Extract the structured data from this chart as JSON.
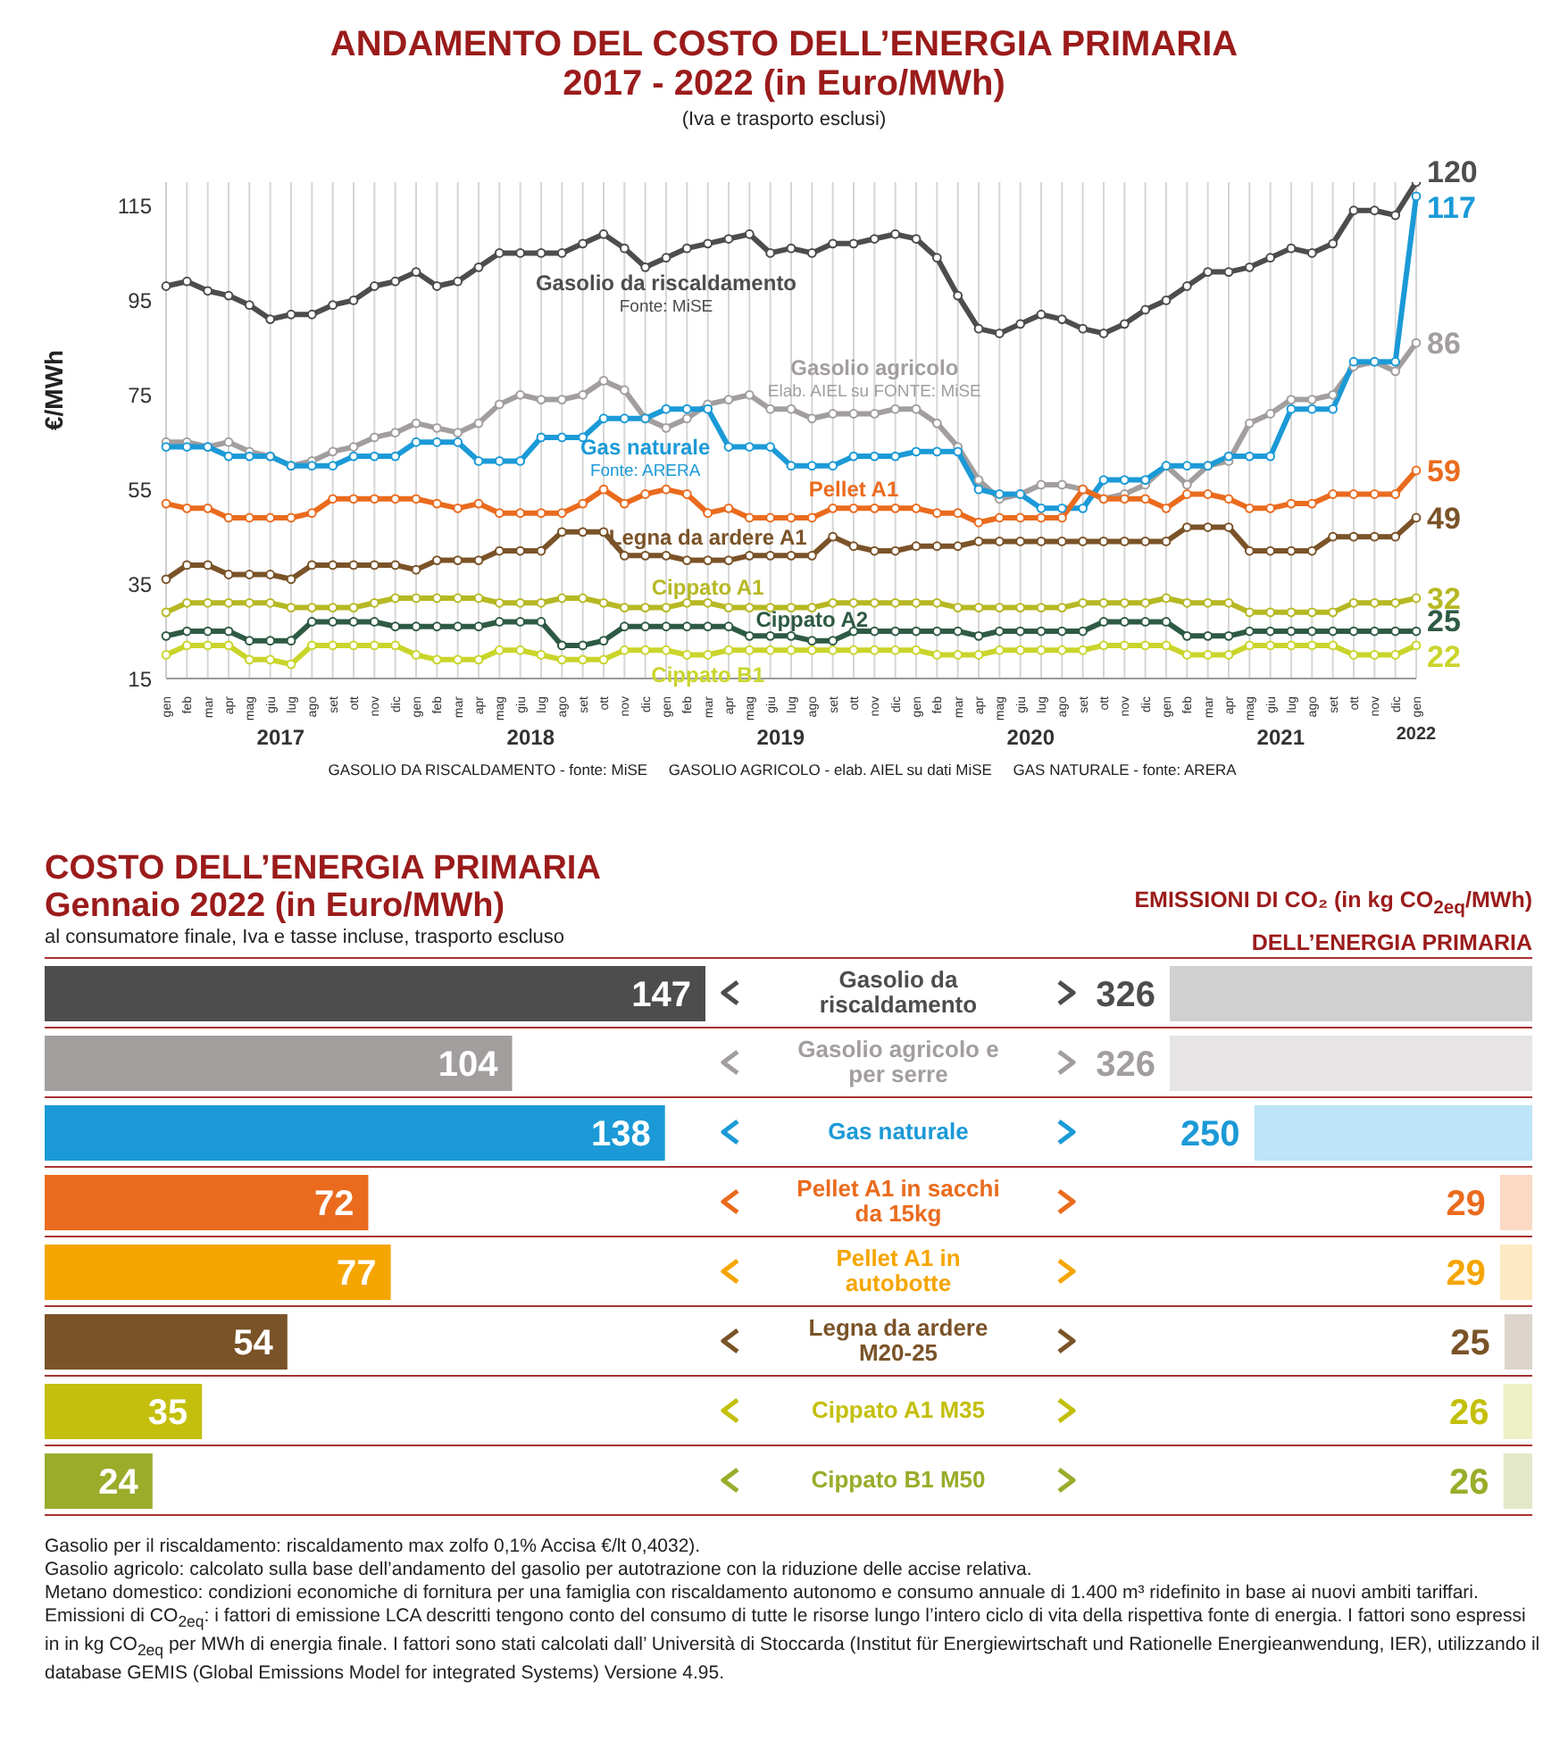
{
  "chart_data": [
    {
      "type": "line",
      "title": "ANDAMENTO DEL COSTO DELL’ENERGIA PRIMARIA\n2017 - 2022 (in Euro/MWh)",
      "subtitle": "(Iva e trasporto esclusi)",
      "ylabel": "€/MWh",
      "categories": [
        "gen",
        "feb",
        "mar",
        "apr",
        "mag",
        "giu",
        "lug",
        "ago",
        "set",
        "ott",
        "nov",
        "dic",
        "gen",
        "feb",
        "mar",
        "apr",
        "mag",
        "giu",
        "lug",
        "ago",
        "set",
        "ott",
        "nov",
        "dic",
        "gen",
        "feb",
        "mar",
        "apr",
        "mag",
        "giu",
        "lug",
        "ago",
        "set",
        "ott",
        "nov",
        "dic",
        "gen",
        "feb",
        "mar",
        "apr",
        "mag",
        "giu",
        "lug",
        "ago",
        "set",
        "ott",
        "nov",
        "dic",
        "gen",
        "feb",
        "mar",
        "apr",
        "mag",
        "giu",
        "lug",
        "ago",
        "set",
        "ott",
        "nov",
        "dic",
        "gen"
      ],
      "series": [
        {
          "name": "Gasolio da riscaldamento",
          "color": "#4d4d4d",
          "values": [
            98,
            99,
            97,
            96,
            94,
            91,
            92,
            92,
            94,
            95,
            98,
            99,
            101,
            98,
            99,
            102,
            105,
            105,
            105,
            105,
            107,
            109,
            106,
            102,
            104,
            106,
            107,
            108,
            109,
            105,
            106,
            105,
            107,
            107,
            108,
            109,
            108,
            104,
            96,
            89,
            88,
            90,
            92,
            91,
            89,
            88,
            90,
            93,
            95,
            98,
            101,
            101,
            102,
            104,
            106,
            105,
            107,
            114,
            114,
            113,
            120
          ],
          "value_labels": [
            null,
            null,
            null,
            null,
            null,
            null,
            null,
            null,
            null,
            null,
            null,
            null,
            null,
            null,
            null,
            null,
            null,
            null,
            null,
            null,
            null,
            null,
            null,
            null,
            null,
            null,
            null,
            null,
            null,
            null,
            null,
            null,
            null,
            null,
            null,
            null,
            null,
            null,
            null,
            null,
            null,
            null,
            null,
            null,
            null,
            null,
            null,
            null,
            null,
            null,
            null,
            null,
            null,
            null,
            null,
            null,
            null,
            null,
            null,
            null,
            "120"
          ]
        },
        {
          "name": "Gasolio agricolo",
          "color": "#a39e9e",
          "values": [
            65,
            65,
            64,
            65,
            63,
            62,
            60,
            61,
            63,
            64,
            66,
            67,
            69,
            68,
            67,
            69,
            73,
            75,
            74,
            74,
            75,
            78,
            76,
            70,
            68,
            70,
            73,
            74,
            75,
            72,
            72,
            70,
            71,
            71,
            71,
            72,
            72,
            69,
            64,
            57,
            53,
            54,
            56,
            56,
            55,
            53,
            54,
            56,
            60,
            56,
            60,
            61,
            69,
            71,
            74,
            74,
            75,
            81,
            82,
            80,
            86
          ],
          "value_labels": [
            null,
            null,
            null,
            null,
            null,
            null,
            null,
            null,
            null,
            null,
            null,
            null,
            null,
            null,
            null,
            null,
            null,
            null,
            null,
            null,
            null,
            null,
            null,
            null,
            null,
            null,
            null,
            null,
            null,
            null,
            null,
            null,
            null,
            null,
            null,
            null,
            null,
            null,
            null,
            null,
            null,
            null,
            null,
            null,
            null,
            null,
            null,
            null,
            null,
            null,
            null,
            null,
            null,
            null,
            null,
            null,
            null,
            null,
            null,
            null,
            "86"
          ]
        },
        {
          "name": "Gas naturale",
          "color": "#1b9ad7",
          "values": [
            64,
            64,
            64,
            62,
            62,
            62,
            60,
            60,
            60,
            62,
            62,
            62,
            65,
            65,
            65,
            61,
            61,
            61,
            66,
            66,
            66,
            70,
            70,
            70,
            72,
            72,
            72,
            64,
            64,
            64,
            60,
            60,
            60,
            62,
            62,
            62,
            63,
            63,
            63,
            55,
            54,
            54,
            51,
            51,
            51,
            57,
            57,
            57,
            60,
            60,
            60,
            62,
            62,
            62,
            72,
            72,
            72,
            82,
            82,
            82,
            117
          ],
          "value_labels": [
            null,
            null,
            null,
            null,
            null,
            null,
            null,
            null,
            null,
            null,
            null,
            null,
            null,
            null,
            null,
            null,
            null,
            null,
            null,
            null,
            null,
            null,
            null,
            null,
            null,
            null,
            null,
            null,
            null,
            null,
            null,
            null,
            null,
            null,
            null,
            null,
            null,
            null,
            null,
            null,
            null,
            null,
            null,
            null,
            null,
            null,
            null,
            null,
            null,
            null,
            null,
            null,
            null,
            null,
            null,
            null,
            null,
            null,
            null,
            null,
            "117"
          ]
        },
        {
          "name": "Pellet A1",
          "color": "#ea6b1e",
          "values": [
            52,
            51,
            51,
            49,
            49,
            49,
            49,
            50,
            53,
            53,
            53,
            53,
            53,
            52,
            51,
            52,
            50,
            50,
            50,
            50,
            52,
            55,
            52,
            54,
            55,
            54,
            50,
            51,
            49,
            49,
            49,
            49,
            51,
            51,
            51,
            51,
            51,
            50,
            50,
            48,
            49,
            49,
            49,
            49,
            55,
            53,
            53,
            53,
            51,
            54,
            54,
            53,
            51,
            51,
            52,
            52,
            54,
            54,
            54,
            54,
            59
          ],
          "value_labels": [
            null,
            null,
            null,
            null,
            null,
            null,
            null,
            null,
            null,
            null,
            null,
            null,
            null,
            null,
            null,
            null,
            null,
            null,
            null,
            null,
            null,
            null,
            null,
            null,
            null,
            null,
            null,
            null,
            null,
            null,
            null,
            null,
            null,
            null,
            null,
            null,
            null,
            null,
            null,
            null,
            null,
            null,
            null,
            null,
            null,
            null,
            null,
            null,
            null,
            null,
            null,
            null,
            null,
            null,
            null,
            null,
            null,
            null,
            null,
            null,
            "59"
          ]
        },
        {
          "name": "Legna da ardere A1",
          "color": "#7a5328",
          "values": [
            36,
            39,
            39,
            37,
            37,
            37,
            36,
            39,
            39,
            39,
            39,
            39,
            38,
            40,
            40,
            40,
            42,
            42,
            42,
            46,
            46,
            46,
            41,
            41,
            41,
            40,
            40,
            40,
            41,
            41,
            41,
            41,
            45,
            43,
            42,
            42,
            43,
            43,
            43,
            44,
            44,
            44,
            44,
            44,
            44,
            44,
            44,
            44,
            44,
            47,
            47,
            47,
            42,
            42,
            42,
            42,
            45,
            45,
            45,
            45,
            49
          ],
          "value_labels": [
            null,
            null,
            null,
            null,
            null,
            null,
            null,
            null,
            null,
            null,
            null,
            null,
            null,
            null,
            null,
            null,
            null,
            null,
            null,
            null,
            null,
            null,
            null,
            null,
            null,
            null,
            null,
            null,
            null,
            null,
            null,
            null,
            null,
            null,
            null,
            null,
            null,
            null,
            null,
            null,
            null,
            null,
            null,
            null,
            null,
            null,
            null,
            null,
            null,
            null,
            null,
            null,
            null,
            null,
            null,
            null,
            null,
            null,
            null,
            null,
            "49"
          ]
        },
        {
          "name": "Cippato A1",
          "color": "#b6b823",
          "values": [
            29,
            31,
            31,
            31,
            31,
            31,
            30,
            30,
            30,
            30,
            31,
            32,
            32,
            32,
            32,
            32,
            31,
            31,
            31,
            32,
            32,
            31,
            30,
            30,
            30,
            31,
            31,
            30,
            30,
            30,
            30,
            30,
            31,
            31,
            31,
            31,
            31,
            31,
            30,
            30,
            30,
            30,
            30,
            30,
            31,
            31,
            31,
            31,
            32,
            31,
            31,
            31,
            29,
            29,
            29,
            29,
            29,
            31,
            31,
            31,
            32
          ],
          "value_labels": [
            null,
            null,
            null,
            null,
            null,
            null,
            null,
            null,
            null,
            null,
            null,
            null,
            null,
            null,
            null,
            null,
            null,
            null,
            null,
            null,
            null,
            null,
            null,
            null,
            null,
            null,
            null,
            null,
            null,
            null,
            null,
            null,
            null,
            null,
            null,
            null,
            null,
            null,
            null,
            null,
            null,
            null,
            null,
            null,
            null,
            null,
            null,
            null,
            null,
            null,
            null,
            null,
            null,
            null,
            null,
            null,
            null,
            null,
            null,
            null,
            "32"
          ]
        },
        {
          "name": "Cippato A2",
          "color": "#2e5a44",
          "values": [
            24,
            25,
            25,
            25,
            23,
            23,
            23,
            27,
            27,
            27,
            27,
            26,
            26,
            26,
            26,
            26,
            27,
            27,
            27,
            22,
            22,
            23,
            26,
            26,
            26,
            26,
            26,
            26,
            24,
            24,
            24,
            23,
            23,
            25,
            25,
            25,
            25,
            25,
            25,
            24,
            25,
            25,
            25,
            25,
            25,
            27,
            27,
            27,
            27,
            24,
            24,
            24,
            25,
            25,
            25,
            25,
            25,
            25,
            25,
            25,
            25
          ],
          "value_labels": [
            null,
            null,
            null,
            null,
            null,
            null,
            null,
            null,
            null,
            null,
            null,
            null,
            null,
            null,
            null,
            null,
            null,
            null,
            null,
            null,
            null,
            null,
            null,
            null,
            null,
            null,
            null,
            null,
            null,
            null,
            null,
            null,
            null,
            null,
            null,
            null,
            null,
            null,
            null,
            null,
            null,
            null,
            null,
            null,
            null,
            null,
            null,
            null,
            null,
            null,
            null,
            null,
            null,
            null,
            null,
            null,
            null,
            null,
            null,
            null,
            "25"
          ]
        },
        {
          "name": "Cippato B1",
          "color": "#c9d52b",
          "values": [
            20,
            22,
            22,
            22,
            19,
            19,
            18,
            22,
            22,
            22,
            22,
            22,
            20,
            19,
            19,
            19,
            21,
            21,
            20,
            19,
            19,
            19,
            21,
            21,
            21,
            20,
            20,
            21,
            21,
            21,
            21,
            21,
            21,
            21,
            21,
            21,
            21,
            20,
            20,
            20,
            21,
            21,
            21,
            21,
            21,
            22,
            22,
            22,
            22,
            20,
            20,
            20,
            22,
            22,
            22,
            22,
            22,
            20,
            20,
            20,
            22
          ],
          "value_labels": [
            null,
            null,
            null,
            null,
            null,
            null,
            null,
            null,
            null,
            null,
            null,
            null,
            null,
            null,
            null,
            null,
            null,
            null,
            null,
            null,
            null,
            null,
            null,
            null,
            null,
            null,
            null,
            null,
            null,
            null,
            null,
            null,
            null,
            null,
            null,
            null,
            null,
            null,
            null,
            null,
            null,
            null,
            null,
            null,
            null,
            null,
            null,
            null,
            null,
            null,
            null,
            null,
            null,
            null,
            null,
            null,
            null,
            null,
            null,
            null,
            "22"
          ]
        }
      ],
      "ylim": [
        15,
        120
      ],
      "yticks": [
        15,
        35,
        55,
        75,
        95,
        115
      ],
      "grid": "x",
      "marker": "circle",
      "annotations": [
        "Fonte: MiSE",
        "Elab. AIEL su FONTE: MiSE",
        "Fonte: ARERA",
        "2017",
        "2018",
        "2019",
        "2020",
        "2021",
        "2022",
        "GASOLIO DA RISCALDAMENTO - fonte: MiSE     GASOLIO AGRICOLO - elab. AIEL su dati MiSE     GAS NATURALE - fonte: ARERA"
      ]
    },
    {
      "type": "bar",
      "orientation": "horizontal",
      "title": "COSTO DELL’ENERGIA PRIMARIA\nGennaio 2022 (in Euro/MWh)",
      "subtitle": "al consumatore finale, Iva e tasse incluse, trasporto escluso",
      "categories": [
        "Gasolio da riscaldamento",
        "Gasolio agricolo e per serre",
        "Gas naturale",
        "Pellet A1 in sacchi da 15kg",
        "Pellet A1 in autobotte",
        "Legna da ardere M20-25",
        "Cippato A1 M35",
        "Cippato B1 M50"
      ],
      "values": [
        147,
        104,
        138,
        72,
        77,
        54,
        35,
        24
      ],
      "colors": [
        "#4d4d4d",
        "#a39e9e",
        "#1b9ad7",
        "#ea6b1e",
        "#f5a500",
        "#7a5328",
        "#c3bf0c",
        "#9aac2a"
      ],
      "data_labels": true,
      "annotations": [
        "Gasolio per il riscaldamento: riscaldamento max zolfo 0,1% Accisa €/lt 0,4032).",
        "Gasolio agricolo: calcolato sulla base dell’andamento del gasolio per autotrazione con la riduzione delle accise relativa.",
        "Metano domestico: condizioni economiche di fornitura per una famiglia con riscaldamento autonomo e consumo annuale di 1.400 m³ ridefinito in base ai nuovi ambiti tariffari.",
        "Emissioni di CO$_{2eq}$: i fattori di emissione LCA descritti tengono conto del consumo di tutte le risorse lungo l’intero ciclo di vita della rispettiva fonte di energia. I fattori sono espressi in in kg CO$_{2eq}$ per MWh di energia finale. I fattori sono stati calcolati dall’ Università di Stoccarda (Institut für Energiewirtschaft und Rationelle Energieanwendung, IER), utilizzando il database GEMIS (Global Emissions Model for integrated Systems) Versione 4.95."
      ]
    },
    {
      "type": "bar",
      "orientation": "horizontal",
      "title": "EMISSIONI DI CO₂ (in kg CO$_{2eq}$/MWh)\nDELL’ENERGIA PRIMARIA",
      "categories": [
        null,
        null,
        null,
        null,
        null,
        null,
        null,
        null
      ],
      "values": [
        326,
        326,
        250,
        29,
        29,
        25,
        26,
        26
      ],
      "colors": [
        "#d0d0d0",
        "#e6e4e4",
        "#bde4f7",
        "#fbd9c5",
        "#fde9c2",
        "#ddd5cb",
        "#eef0c6",
        "#e3e8c8"
      ],
      "data_labels": true
    }
  ]
}
